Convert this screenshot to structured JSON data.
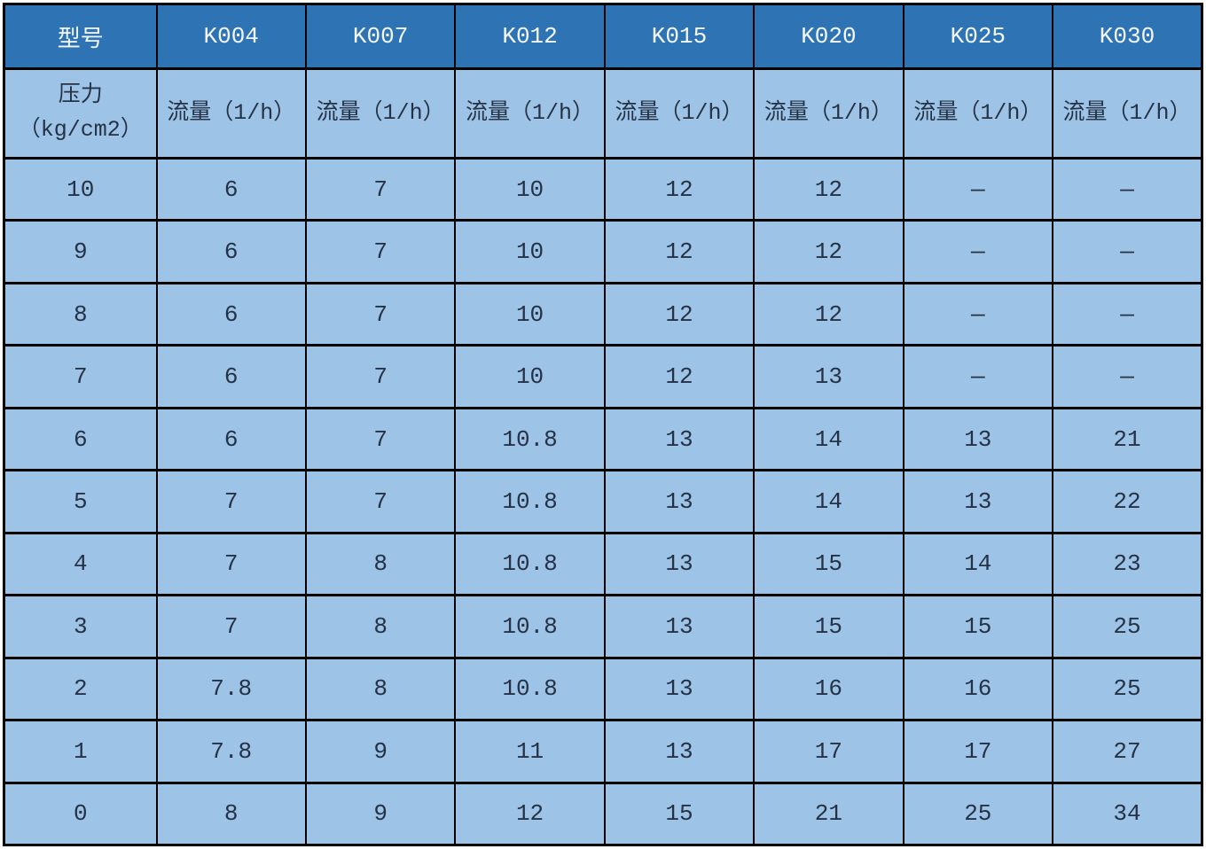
{
  "colors": {
    "header_bg": "#2E74B5",
    "header_text": "#F5F8FB",
    "cell_bg": "#9DC3E6",
    "border": "#000000",
    "cell_text": "#253246"
  },
  "table": {
    "header": [
      "型号",
      "K004",
      "K007",
      "K012",
      "K015",
      "K020",
      "K025",
      "K030"
    ],
    "subheader": [
      "压力\n（kg/cm2）",
      "流量（1/h）",
      "流量（1/h）",
      "流量（1/h）",
      "流量（1/h）",
      "流量（1/h）",
      "流量（1/h）",
      "流量（1/h）"
    ],
    "rows": [
      [
        "10",
        "6",
        "7",
        "10",
        "12",
        "12",
        "—",
        "—"
      ],
      [
        "9",
        "6",
        "7",
        "10",
        "12",
        "12",
        "—",
        "—"
      ],
      [
        "8",
        "6",
        "7",
        "10",
        "12",
        "12",
        "—",
        "—"
      ],
      [
        "7",
        "6",
        "7",
        "10",
        "12",
        "13",
        "—",
        "—"
      ],
      [
        "6",
        "6",
        "7",
        "10.8",
        "13",
        "14",
        "13",
        "21"
      ],
      [
        "5",
        "7",
        "7",
        "10.8",
        "13",
        "14",
        "13",
        "22"
      ],
      [
        "4",
        "7",
        "8",
        "10.8",
        "13",
        "15",
        "14",
        "23"
      ],
      [
        "3",
        "7",
        "8",
        "10.8",
        "13",
        "15",
        "15",
        "25"
      ],
      [
        "2",
        "7.8",
        "8",
        "10.8",
        "13",
        "16",
        "16",
        "25"
      ],
      [
        "1",
        "7.8",
        "9",
        "11",
        "13",
        "17",
        "17",
        "27"
      ],
      [
        "0",
        "8",
        "9",
        "12",
        "15",
        "21",
        "25",
        "34"
      ]
    ]
  }
}
